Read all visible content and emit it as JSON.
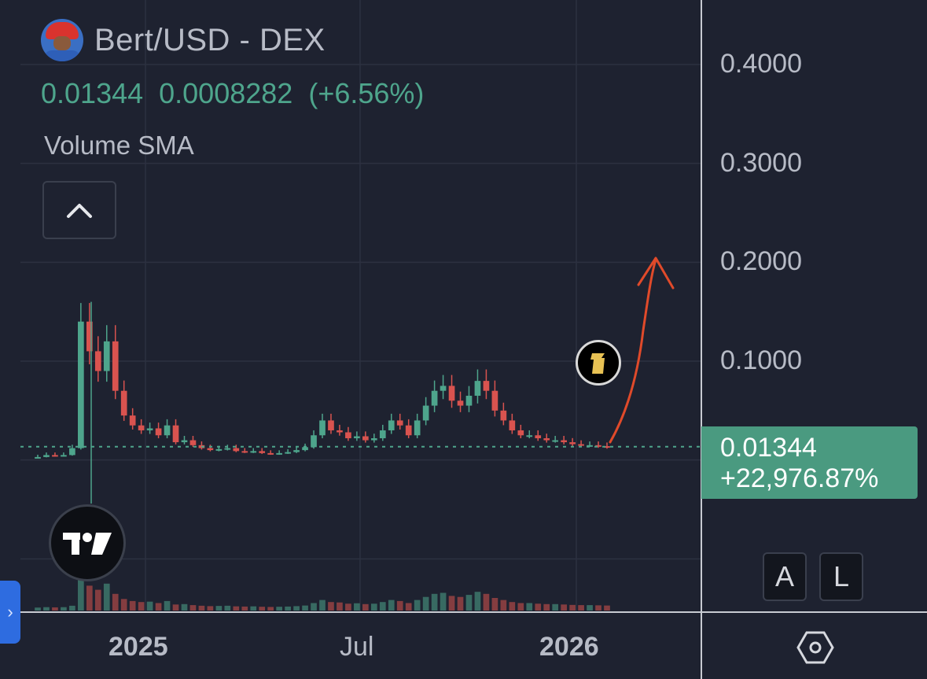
{
  "header": {
    "symbol": "Bert/USD - DEX",
    "last_price": "0.01344",
    "change": "0.0008282",
    "change_pct": "(+6.56%)",
    "indicator": "Volume SMA"
  },
  "price_tag": {
    "price": "0.01344",
    "pct": "+22,976.87%"
  },
  "buttons": {
    "auto": "A",
    "log": "L",
    "side_tab": "›"
  },
  "colors": {
    "bg": "#1e2230",
    "up": "#4ea58c",
    "down": "#d9534f",
    "annotation": "#e04a2a",
    "grid": "#2c3140"
  },
  "icons": {
    "collapse": "chevron-up-icon",
    "logo": "tradingview-logo-icon",
    "settings": "hexagon-settings-icon",
    "event": "event-marker-icon",
    "avatar": "bert-avatar-icon"
  },
  "chart_data": {
    "type": "candlestick",
    "title": "Bert/USD - DEX",
    "y_ticks": [
      "0.4000",
      "0.3000",
      "0.2000",
      "0.1000"
    ],
    "x_ticks": [
      "2025",
      "Jul",
      "2026"
    ],
    "ylim": [
      -0.05,
      0.45
    ],
    "last_price": 0.01344,
    "series": [
      {
        "name": "Bert/USD",
        "close": [
          0.003,
          0.005,
          0.004,
          0.005,
          0.012,
          0.14,
          0.11,
          0.09,
          0.12,
          0.07,
          0.045,
          0.035,
          0.03,
          0.032,
          0.025,
          0.035,
          0.018,
          0.02,
          0.015,
          0.012,
          0.01,
          0.011,
          0.012,
          0.009,
          0.008,
          0.009,
          0.007,
          0.006,
          0.007,
          0.008,
          0.01,
          0.013,
          0.025,
          0.04,
          0.03,
          0.028,
          0.022,
          0.024,
          0.02,
          0.022,
          0.03,
          0.04,
          0.035,
          0.025,
          0.04,
          0.055,
          0.07,
          0.075,
          0.06,
          0.055,
          0.065,
          0.08,
          0.07,
          0.05,
          0.04,
          0.03,
          0.025,
          0.025,
          0.022,
          0.02,
          0.02,
          0.018,
          0.016,
          0.015,
          0.015,
          0.014,
          0.013
        ]
      }
    ]
  }
}
